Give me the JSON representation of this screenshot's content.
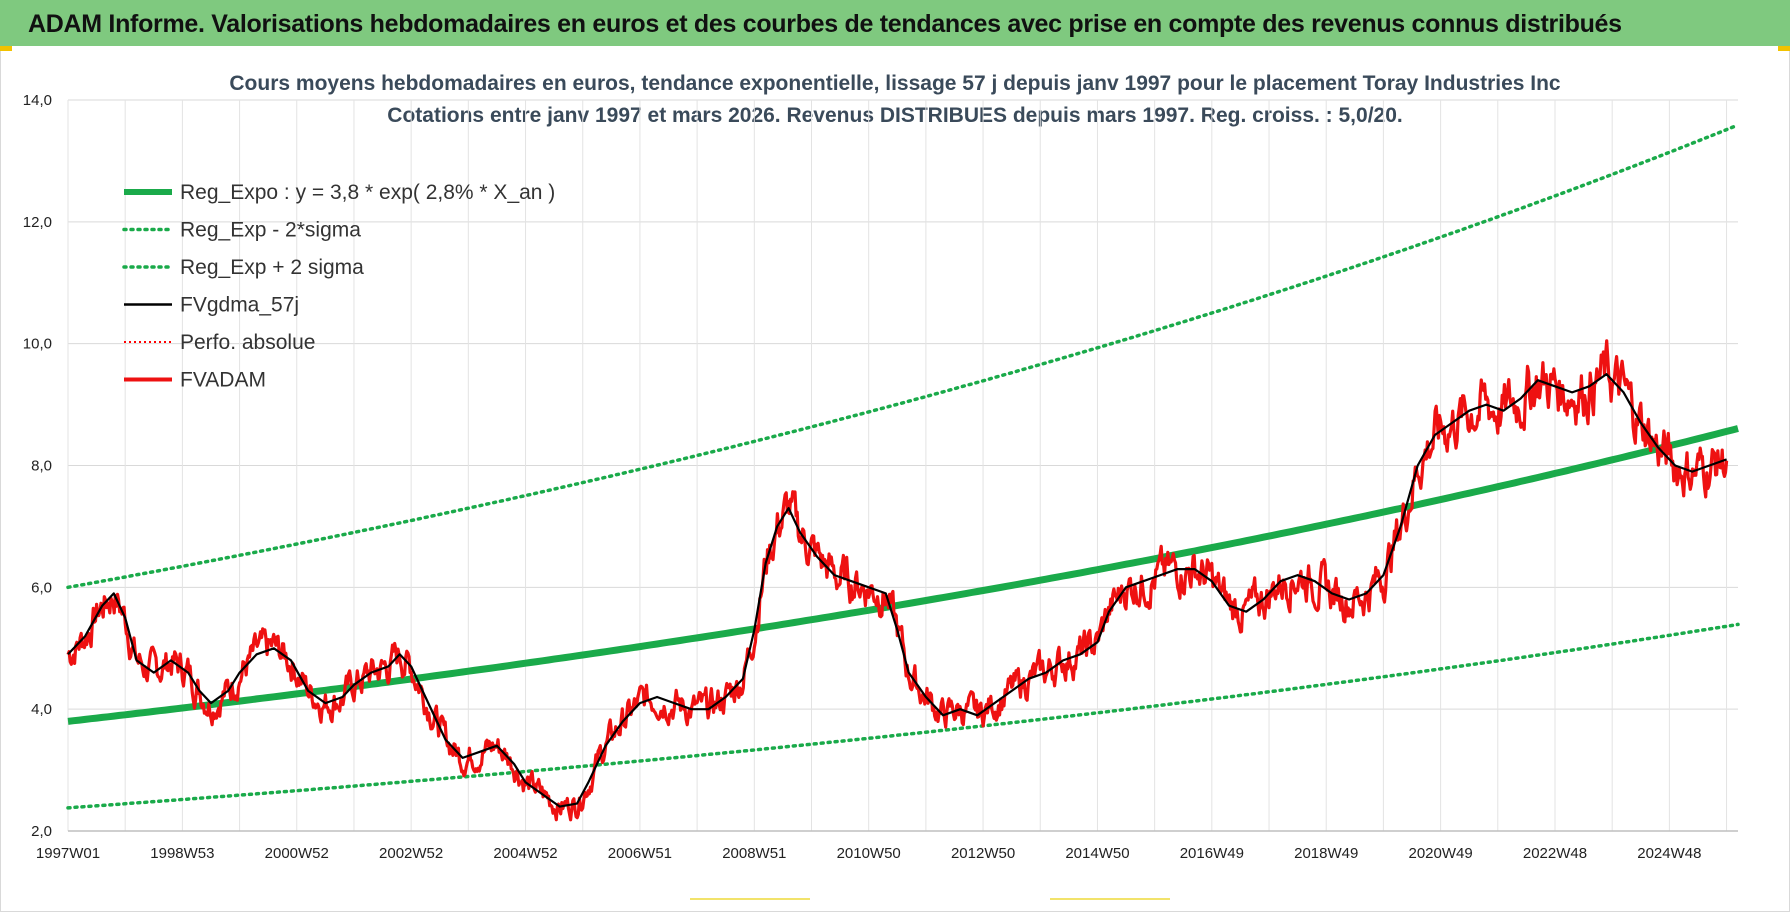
{
  "banner": "ADAM Informe. Valorisations hebdomadaires en euros et des courbes de tendances avec prise en compte des revenus connus distribués",
  "chart_data": {
    "type": "line",
    "title_line1": "Cours moyens hebdomadaires en euros, tendance exponentielle, lissage 57 j depuis janv 1997 pour le placement Toray Industries Inc",
    "title_line2": "Cotations entre janv 1997 et mars 2026. Revenus DISTRIBUES depuis mars 1997. Reg. croiss. : 5,0/20.",
    "x_range_years": [
      1997.0,
      2026.2
    ],
    "ylim": [
      2.0,
      14.0
    ],
    "y_ticks": [
      "14,0",
      "12,0",
      "10,0",
      "8,0",
      "6,0",
      "4,0",
      "2,0"
    ],
    "y_tick_values": [
      14,
      12,
      10,
      8,
      6,
      4,
      2
    ],
    "x_tick_labels": [
      "1997W01",
      "1998W53",
      "2000W52",
      "2002W52",
      "2004W52",
      "2006W51",
      "2008W51",
      "2010W50",
      "2012W50",
      "2014W50",
      "2016W49",
      "2018W49",
      "2020W49",
      "2022W48",
      "2024W48"
    ],
    "x_tick_years": [
      1997.0,
      1999.0,
      2001.0,
      2003.0,
      2005.0,
      2007.0,
      2009.0,
      2011.0,
      2013.0,
      2015.0,
      2017.0,
      2019.0,
      2021.0,
      2023.0,
      2025.0
    ],
    "grid": true,
    "legend_position": "top-left",
    "series": [
      {
        "name": "Reg_Expo : y = 3,8 * exp( 2,8% *  X_an )",
        "color": "#1aaa4a",
        "style": "thick",
        "a": 3.8,
        "b": 0.028
      },
      {
        "name": "Reg_Exp - 2*sigma",
        "color": "#1aaa4a",
        "style": "dotted",
        "a": 2.38,
        "b": 0.028
      },
      {
        "name": "Reg_Exp + 2 sigma",
        "color": "#1aaa4a",
        "style": "dotted",
        "a": 6.0,
        "b": 0.028
      },
      {
        "name": "FVgdma_57j",
        "color": "#000000",
        "style": "solid",
        "points": [
          [
            1997.0,
            4.9
          ],
          [
            1997.3,
            5.2
          ],
          [
            1997.6,
            5.7
          ],
          [
            1997.8,
            5.9
          ],
          [
            1998.0,
            5.5
          ],
          [
            1998.2,
            4.8
          ],
          [
            1998.5,
            4.6
          ],
          [
            1998.8,
            4.8
          ],
          [
            1999.1,
            4.6
          ],
          [
            1999.3,
            4.3
          ],
          [
            1999.5,
            4.1
          ],
          [
            1999.8,
            4.3
          ],
          [
            2000.0,
            4.6
          ],
          [
            2000.3,
            4.9
          ],
          [
            2000.6,
            5.0
          ],
          [
            2000.9,
            4.8
          ],
          [
            2001.2,
            4.3
          ],
          [
            2001.5,
            4.1
          ],
          [
            2001.8,
            4.2
          ],
          [
            2002.0,
            4.4
          ],
          [
            2002.3,
            4.6
          ],
          [
            2002.6,
            4.7
          ],
          [
            2002.8,
            4.9
          ],
          [
            2003.0,
            4.7
          ],
          [
            2003.3,
            4.1
          ],
          [
            2003.6,
            3.5
          ],
          [
            2003.9,
            3.2
          ],
          [
            2004.2,
            3.3
          ],
          [
            2004.5,
            3.4
          ],
          [
            2004.8,
            3.1
          ],
          [
            2005.0,
            2.8
          ],
          [
            2005.3,
            2.6
          ],
          [
            2005.6,
            2.4
          ],
          [
            2005.9,
            2.45
          ],
          [
            2006.1,
            2.8
          ],
          [
            2006.4,
            3.4
          ],
          [
            2006.7,
            3.8
          ],
          [
            2007.0,
            4.1
          ],
          [
            2007.3,
            4.2
          ],
          [
            2007.6,
            4.1
          ],
          [
            2007.9,
            4.0
          ],
          [
            2008.2,
            4.0
          ],
          [
            2008.5,
            4.2
          ],
          [
            2008.8,
            4.5
          ],
          [
            2009.0,
            5.3
          ],
          [
            2009.2,
            6.4
          ],
          [
            2009.4,
            7.0
          ],
          [
            2009.6,
            7.3
          ],
          [
            2009.8,
            6.9
          ],
          [
            2010.1,
            6.5
          ],
          [
            2010.4,
            6.2
          ],
          [
            2010.7,
            6.1
          ],
          [
            2011.0,
            6.0
          ],
          [
            2011.3,
            5.9
          ],
          [
            2011.5,
            5.3
          ],
          [
            2011.7,
            4.6
          ],
          [
            2012.0,
            4.2
          ],
          [
            2012.3,
            3.9
          ],
          [
            2012.6,
            4.0
          ],
          [
            2012.9,
            3.9
          ],
          [
            2013.2,
            4.1
          ],
          [
            2013.5,
            4.3
          ],
          [
            2013.8,
            4.5
          ],
          [
            2014.1,
            4.6
          ],
          [
            2014.4,
            4.8
          ],
          [
            2014.7,
            4.9
          ],
          [
            2015.0,
            5.1
          ],
          [
            2015.2,
            5.6
          ],
          [
            2015.5,
            6.0
          ],
          [
            2015.8,
            6.1
          ],
          [
            2016.1,
            6.2
          ],
          [
            2016.4,
            6.3
          ],
          [
            2016.7,
            6.3
          ],
          [
            2017.0,
            6.1
          ],
          [
            2017.3,
            5.7
          ],
          [
            2017.6,
            5.6
          ],
          [
            2017.9,
            5.8
          ],
          [
            2018.2,
            6.1
          ],
          [
            2018.5,
            6.2
          ],
          [
            2018.8,
            6.1
          ],
          [
            2019.1,
            5.9
          ],
          [
            2019.4,
            5.8
          ],
          [
            2019.7,
            5.9
          ],
          [
            2020.0,
            6.2
          ],
          [
            2020.3,
            7.0
          ],
          [
            2020.6,
            8.0
          ],
          [
            2020.9,
            8.5
          ],
          [
            2021.2,
            8.7
          ],
          [
            2021.5,
            8.9
          ],
          [
            2021.8,
            9.0
          ],
          [
            2022.1,
            8.9
          ],
          [
            2022.4,
            9.1
          ],
          [
            2022.7,
            9.4
          ],
          [
            2023.0,
            9.3
          ],
          [
            2023.3,
            9.2
          ],
          [
            2023.6,
            9.3
          ],
          [
            2023.9,
            9.5
          ],
          [
            2024.2,
            9.2
          ],
          [
            2024.5,
            8.7
          ],
          [
            2024.8,
            8.3
          ],
          [
            2025.1,
            8.0
          ],
          [
            2025.4,
            7.9
          ],
          [
            2025.7,
            8.0
          ],
          [
            2026.0,
            8.1
          ]
        ]
      },
      {
        "name": "Perfo. absolue",
        "color": "#ff0000",
        "style": "dotted"
      },
      {
        "name": "FVADAM",
        "color": "#ee1111",
        "style": "thick-solid",
        "noise": 0.22,
        "seed": 7
      }
    ]
  }
}
